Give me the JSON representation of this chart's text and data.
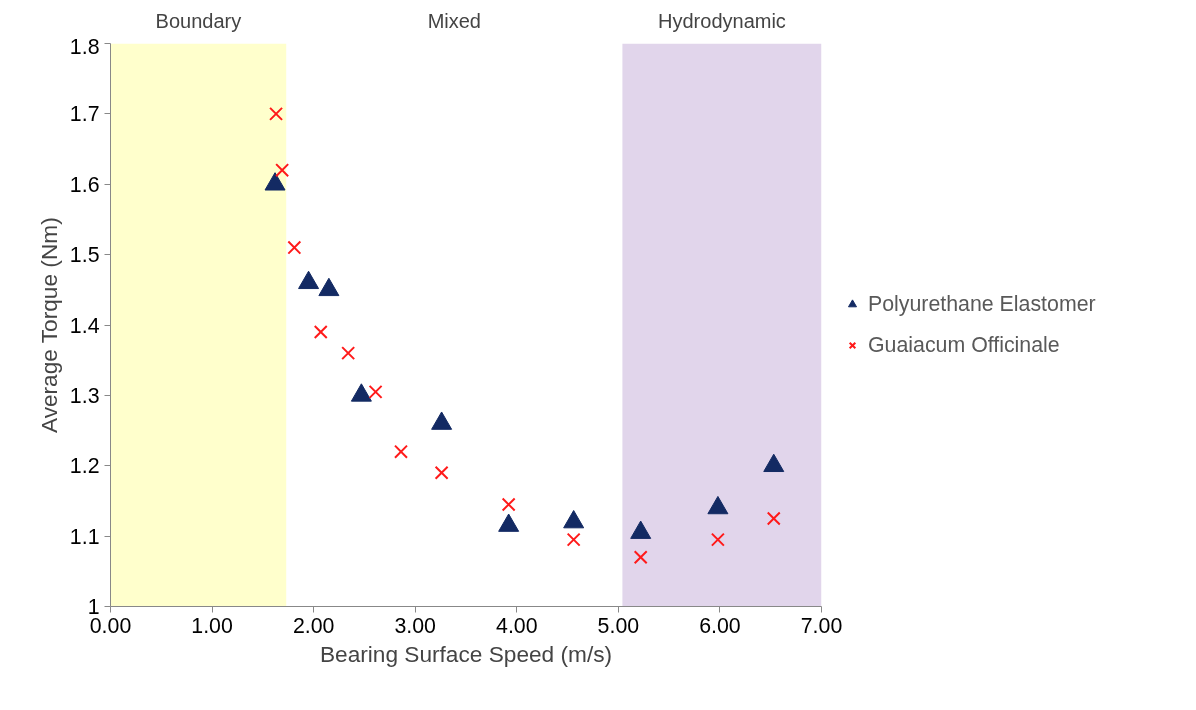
{
  "chart_data": {
    "type": "scatter",
    "xlabel": "Bearing Surface Speed (m/s)",
    "ylabel": "Average Torque (Nm)",
    "xlim": [
      0,
      7
    ],
    "xticks": [
      {
        "value": 0,
        "label": "0.00"
      },
      {
        "value": 1,
        "label": "1.00"
      },
      {
        "value": 2,
        "label": "2.00"
      },
      {
        "value": 3,
        "label": "3.00"
      },
      {
        "value": 4,
        "label": "4.00"
      },
      {
        "value": 5,
        "label": "5.00"
      },
      {
        "value": 6,
        "label": "6.00"
      },
      {
        "value": 7,
        "label": "7.00"
      }
    ],
    "ylim": [
      1,
      1.8
    ],
    "yticks": [
      1,
      1.1,
      1.2,
      1.3,
      1.4,
      1.5,
      1.6,
      1.7,
      1.8
    ],
    "grid": false,
    "legend": "right",
    "series": [
      {
        "name": "Polyurethane Elastomer",
        "color": "#132a63",
        "marker": "triangle",
        "x": [
          1.62,
          1.95,
          2.15,
          2.47,
          3.26,
          3.92,
          4.56,
          5.22,
          5.98,
          6.53
        ],
        "values": [
          1.6,
          1.46,
          1.45,
          1.3,
          1.26,
          1.115,
          1.12,
          1.105,
          1.14,
          1.2
        ]
      },
      {
        "name": "Guaiacum Officinale",
        "color": "#ff1a1a",
        "marker": "cross",
        "x": [
          1.63,
          1.69,
          1.81,
          2.07,
          2.34,
          2.61,
          2.86,
          3.26,
          3.92,
          4.56,
          5.22,
          5.98,
          6.53
        ],
        "values": [
          1.7,
          1.62,
          1.51,
          1.39,
          1.36,
          1.305,
          1.22,
          1.19,
          1.145,
          1.095,
          1.07,
          1.095,
          1.125
        ]
      }
    ],
    "bands": [
      {
        "axis": "x",
        "from": 0,
        "to": 1.73,
        "label": "Boundary",
        "color": "#ffffcc"
      },
      {
        "axis": "x",
        "from": 5.04,
        "to": 7,
        "label": "Hydrodynamic",
        "color": "#e1d5eb"
      }
    ],
    "annotations": [
      "Mixed"
    ]
  }
}
